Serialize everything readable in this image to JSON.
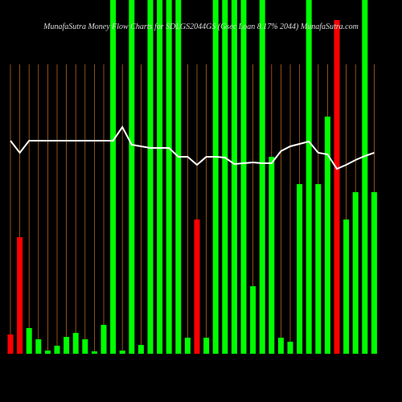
{
  "chart_data": {
    "type": "bar",
    "title": "MunafaSutra  Money Flow  Charts for SDLGS2044GS  (Gsec Loan 8.17% 2044)  MunafaSutra.com",
    "categories": [
      null,
      null,
      null,
      null,
      null,
      null,
      null,
      null,
      null,
      null,
      null,
      null,
      null,
      null,
      null,
      null,
      null,
      null,
      null,
      null,
      null,
      null,
      null,
      null,
      null,
      null,
      null,
      null,
      null,
      null,
      null,
      null,
      null,
      null,
      null,
      null,
      null,
      null,
      null,
      null
    ],
    "values": [
      24,
      145,
      32,
      18,
      4,
      10,
      21,
      26,
      18,
      3,
      36,
      440,
      4,
      440,
      11,
      440,
      440,
      440,
      440,
      20,
      167,
      20,
      440,
      440,
      440,
      440,
      84,
      440,
      245,
      20,
      15,
      211,
      440,
      211,
      295,
      415,
      167,
      201,
      440,
      201
    ],
    "colors": [
      "#ff0000",
      "#ff0000",
      "#00ff00",
      "#00ff00",
      "#00ff00",
      "#00ff00",
      "#00ff00",
      "#00ff00",
      "#00ff00",
      "#00ff00",
      "#00ff00",
      "#00ff00",
      "#00ff00",
      "#00ff00",
      "#00ff00",
      "#00ff00",
      "#00ff00",
      "#00ff00",
      "#00ff00",
      "#00ff00",
      "#ff0000",
      "#00ff00",
      "#00ff00",
      "#00ff00",
      "#00ff00",
      "#00ff00",
      "#00ff00",
      "#00ff00",
      "#00ff00",
      "#00ff00",
      "#00ff00",
      "#00ff00",
      "#00ff00",
      "#00ff00",
      "#00ff00",
      "#ff0000",
      "#00ff00",
      "#00ff00",
      "#00ff00",
      "#00ff00"
    ],
    "line": {
      "color": "#ffffff",
      "values": [
        265,
        250,
        265,
        265,
        265,
        265,
        265,
        265,
        265,
        265,
        265,
        265,
        282,
        260,
        258,
        256,
        256,
        256,
        245,
        245,
        235,
        245,
        245,
        244,
        236,
        237,
        238,
        237,
        237,
        252,
        258,
        261,
        264,
        250,
        248,
        230,
        235,
        241,
        246,
        250
      ]
    },
    "grid_color": "#b5651d",
    "ylim": [
      0,
      440
    ]
  }
}
